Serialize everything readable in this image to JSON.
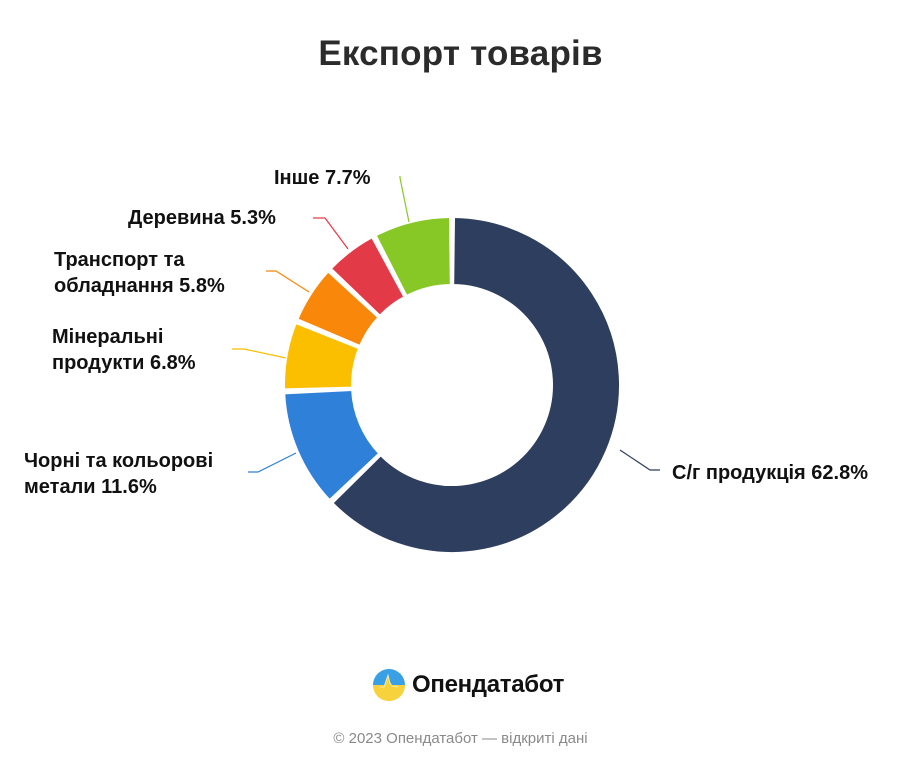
{
  "header": {
    "title": "Експорт товарів"
  },
  "chart_data": {
    "type": "pie",
    "subtype": "donut",
    "title": "Експорт товарів",
    "start_angle": "12 o'clock, clockwise",
    "categories": [
      "С/г продукція",
      "Чорні та кольорові метали",
      "Мінеральні продукти",
      "Транспорт та обладнання",
      "Деревина",
      "Інше"
    ],
    "values": [
      62.8,
      11.6,
      6.8,
      5.8,
      5.3,
      7.7
    ],
    "unit": "%",
    "colors": [
      "#2e3e5f",
      "#2f80d8",
      "#fbbf00",
      "#f8870a",
      "#e33a48",
      "#88c826"
    ],
    "labels": [
      {
        "line1": "С/г продукція 62.8%"
      },
      {
        "line1": "Чорні та кольорові",
        "line2": "метали 11.6%"
      },
      {
        "line1": "Мінеральні",
        "line2": "продукти 6.8%"
      },
      {
        "line1": "Транспорт та",
        "line2": "обладнання 5.8%"
      },
      {
        "line1": "Деревина 5.3%"
      },
      {
        "line1": "Інше 7.7%"
      }
    ]
  },
  "brand": {
    "name": "Опендатабот",
    "logo_icon": "opendatabot-logo-icon"
  },
  "footer": {
    "text": "© 2023 Опендатабот — відкриті дані"
  }
}
